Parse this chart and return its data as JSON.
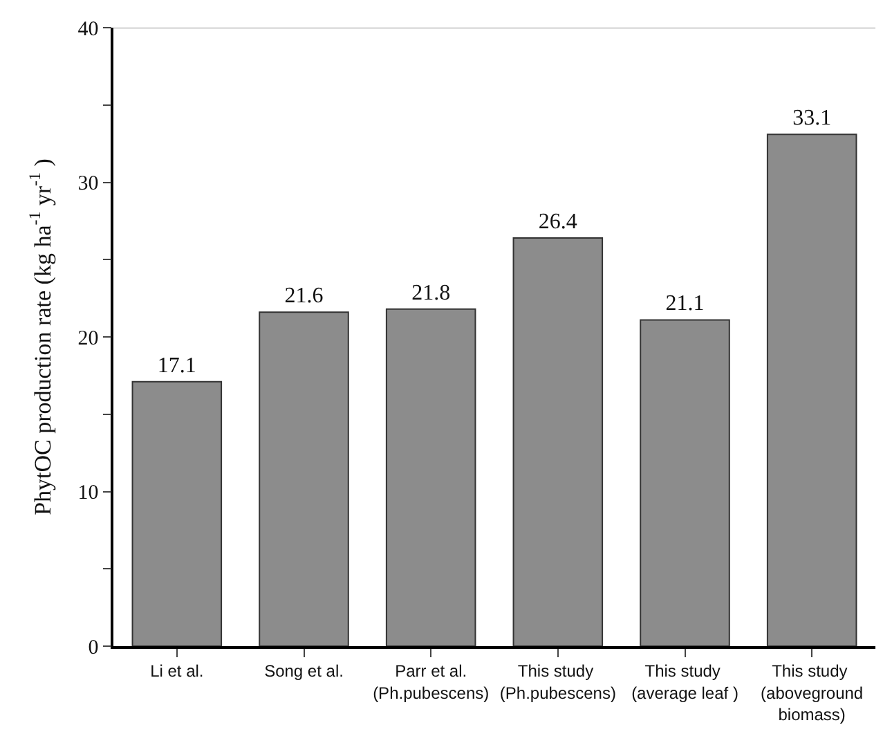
{
  "chart_data": {
    "type": "bar",
    "categories": [
      "Li et al.",
      "Song et al.",
      "Parr et al.(Ph.pubescens)",
      "This study (Ph.pubescens)",
      "This study (average leaf )",
      "This study (aboveground biomass)"
    ],
    "values": [
      17.1,
      21.6,
      21.8,
      26.4,
      21.1,
      33.1
    ],
    "color": "#8c8c8c",
    "ylabel": "PhytOC production rate (kg ha$^{-1}$ yr$^{-1}$ )",
    "ylim": [
      0,
      40
    ],
    "yticks": [
      0,
      {
        "value": 5,
        "label": null
      },
      10,
      {
        "value": 15,
        "label": null
      },
      20,
      {
        "value": 25,
        "label": null
      },
      30,
      {
        "value": 35,
        "label": null
      },
      40
    ],
    "data_labels": true
  }
}
